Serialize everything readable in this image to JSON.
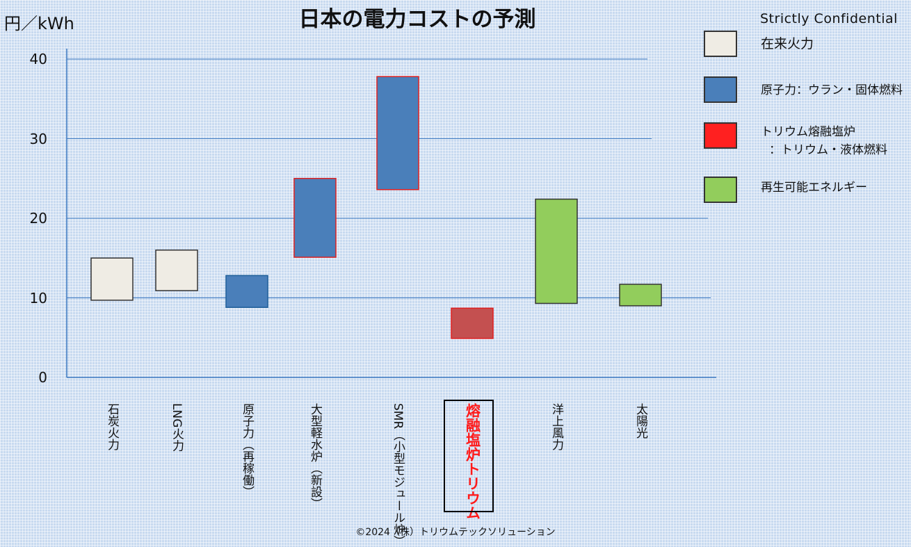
{
  "header": {
    "title": "日本の電力コストの予測",
    "unit": "円／kWh",
    "confidential": "Strictly Confidential"
  },
  "legend": [
    {
      "label": "在来火力",
      "color": "#efece4"
    },
    {
      "label": "原子力：ウラン・固体燃料",
      "color": "#4a7fba"
    },
    {
      "label": "トリウム熔融塩炉",
      "label2": "：トリウム・液体燃料",
      "color": "#ff2020"
    },
    {
      "label": "再生可能エネルギー",
      "color": "#92cd5c"
    }
  ],
  "chart_data": {
    "type": "bar",
    "title": "日本の電力コストの予測",
    "ylabel": "円／kWh",
    "ylim": [
      0,
      40
    ],
    "yticks": [
      "0",
      "10",
      "20",
      "30",
      "40"
    ],
    "categories": [
      {
        "lines": [
          "石炭火力"
        ],
        "low": 9.7,
        "high": 15.0,
        "fill": "#efece4",
        "stroke": "#333333"
      },
      {
        "lines": [
          "LNG火力"
        ],
        "low": 10.9,
        "high": 16.0,
        "fill": "#efece4",
        "stroke": "#333333"
      },
      {
        "lines": [
          "原子力",
          "（再稼働）"
        ],
        "low": 8.8,
        "high": 12.8,
        "fill": "#4a7fba",
        "stroke": "#1f5f99"
      },
      {
        "lines": [
          "大型軽水炉",
          "（新設）"
        ],
        "low": 15.1,
        "high": 25.0,
        "fill": "#4a7fba",
        "stroke": "#e02020"
      },
      {
        "lines": [
          "SMR",
          "（小型モジュール炉）"
        ],
        "low": 23.6,
        "high": 37.8,
        "fill": "#4a7fba",
        "stroke": "#e02020"
      },
      {
        "lines": [
          "熔融塩炉",
          "トリウム"
        ],
        "low": 4.9,
        "high": 8.7,
        "fill": "#c45050",
        "stroke": "#e02020",
        "highlight": true
      },
      {
        "lines": [
          "洋上風力"
        ],
        "low": 9.3,
        "high": 22.4,
        "fill": "#92cd5c",
        "stroke": "#333333"
      },
      {
        "lines": [
          "太陽光"
        ],
        "low": 9.0,
        "high": 11.7,
        "fill": "#92cd5c",
        "stroke": "#333333"
      }
    ],
    "grid": true
  },
  "footer": {
    "copyright": "©2024（株）トリウムテックソリューション"
  }
}
